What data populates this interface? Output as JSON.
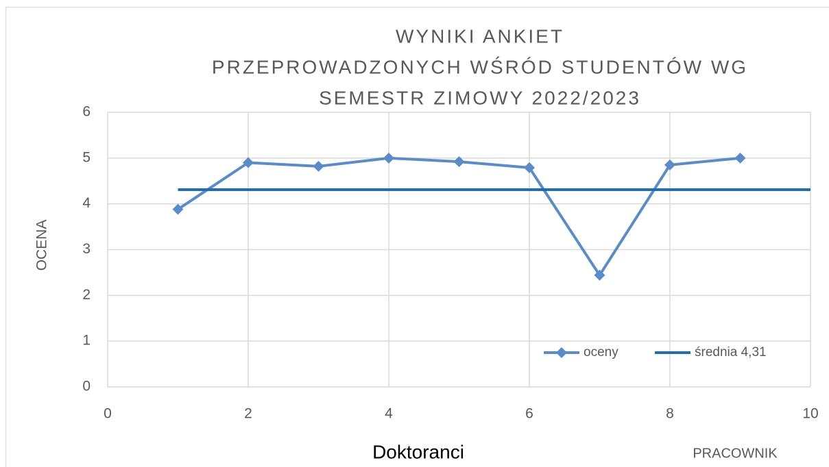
{
  "chart_data": {
    "type": "scatter",
    "title": [
      "WYNIKI ANKIET",
      "PRZEPROWADZONYCH WŚRÓD STUDENTÓW WG",
      "SEMESTR ZIMOWY 2022/2023"
    ],
    "x_label": "PRACOWNIK",
    "y_label": "OCENA",
    "caption": "Doktoranci",
    "xlim": [
      0,
      10
    ],
    "ylim": [
      0,
      6
    ],
    "xticks": [
      0,
      2,
      4,
      6,
      8,
      10
    ],
    "yticks": [
      0,
      1,
      2,
      3,
      4,
      5,
      6
    ],
    "grid": true,
    "legend": "lower right",
    "series": [
      {
        "name": "oceny",
        "color": "#5b8cc6",
        "marker": "diamond",
        "x": [
          1,
          2,
          3,
          4,
          5,
          6,
          7,
          8,
          9
        ],
        "values": [
          3.88,
          4.9,
          4.82,
          5.0,
          4.92,
          4.79,
          2.44,
          4.85,
          5.0
        ]
      },
      {
        "name": "średnia 4,31",
        "color": "#1f6db5",
        "x": [
          1,
          10
        ],
        "values": [
          4.31,
          4.31
        ]
      }
    ]
  }
}
